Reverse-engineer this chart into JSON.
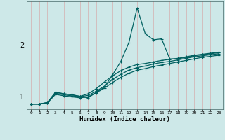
{
  "title": "",
  "xlabel": "Humidex (Indice chaleur)",
  "ylabel": "",
  "background_color": "#cde8e8",
  "plot_bg_color": "#cde8e8",
  "grid_color_v": "#d4b8b8",
  "grid_color_h": "#b8d0d0",
  "line_color": "#006060",
  "marker_color": "#006060",
  "xlim": [
    -0.5,
    23.5
  ],
  "ylim": [
    0.75,
    2.85
  ],
  "yticks": [
    1,
    2
  ],
  "xticks": [
    0,
    1,
    2,
    3,
    4,
    5,
    6,
    7,
    8,
    9,
    10,
    11,
    12,
    13,
    14,
    15,
    16,
    17,
    18,
    19,
    20,
    21,
    22,
    23
  ],
  "line1_x": [
    0,
    1,
    2,
    3,
    4,
    5,
    6,
    7,
    8,
    9,
    10,
    11,
    12,
    13,
    14,
    15,
    16,
    17,
    18,
    19,
    20,
    21,
    22,
    23
  ],
  "line1_y": [
    0.85,
    0.85,
    0.88,
    1.08,
    1.05,
    1.03,
    1.0,
    0.97,
    1.08,
    1.18,
    1.42,
    1.68,
    2.05,
    2.72,
    2.22,
    2.1,
    2.12,
    1.73,
    1.73,
    1.76,
    1.79,
    1.81,
    1.83,
    1.85
  ],
  "line2_x": [
    0,
    1,
    2,
    3,
    4,
    5,
    6,
    7,
    8,
    9,
    10,
    11,
    12,
    13,
    14,
    15,
    16,
    17,
    18,
    19,
    20,
    21,
    22,
    23
  ],
  "line2_y": [
    0.85,
    0.85,
    0.88,
    1.08,
    1.05,
    1.03,
    1.0,
    1.05,
    1.15,
    1.28,
    1.4,
    1.5,
    1.57,
    1.62,
    1.64,
    1.67,
    1.7,
    1.72,
    1.74,
    1.77,
    1.8,
    1.82,
    1.84,
    1.86
  ],
  "line3_x": [
    0,
    1,
    2,
    3,
    4,
    5,
    6,
    7,
    8,
    9,
    10,
    11,
    12,
    13,
    14,
    15,
    16,
    17,
    18,
    19,
    20,
    21,
    22,
    23
  ],
  "line3_y": [
    0.85,
    0.85,
    0.87,
    1.06,
    1.03,
    1.01,
    0.99,
    1.02,
    1.1,
    1.2,
    1.33,
    1.43,
    1.51,
    1.56,
    1.59,
    1.63,
    1.66,
    1.68,
    1.71,
    1.74,
    1.77,
    1.79,
    1.81,
    1.83
  ],
  "line4_x": [
    0,
    1,
    2,
    3,
    4,
    5,
    6,
    7,
    8,
    9,
    10,
    11,
    12,
    13,
    14,
    15,
    16,
    17,
    18,
    19,
    20,
    21,
    22,
    23
  ],
  "line4_y": [
    0.85,
    0.85,
    0.87,
    1.04,
    1.01,
    0.99,
    0.97,
    0.99,
    1.07,
    1.16,
    1.27,
    1.37,
    1.45,
    1.51,
    1.54,
    1.58,
    1.61,
    1.64,
    1.67,
    1.7,
    1.73,
    1.76,
    1.78,
    1.8
  ]
}
